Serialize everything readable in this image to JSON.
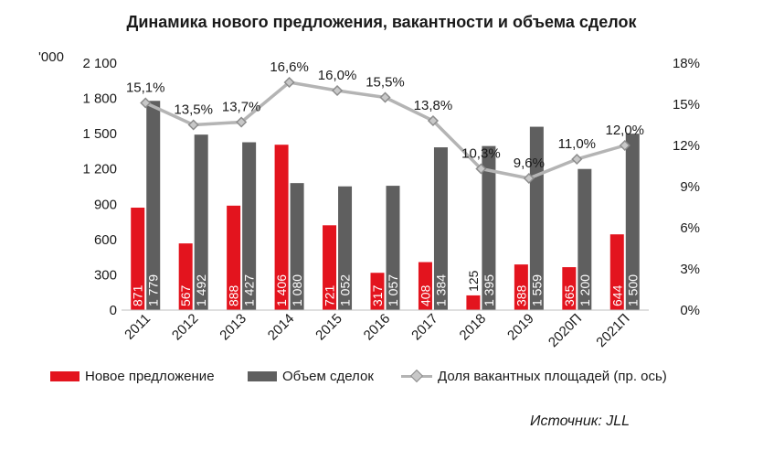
{
  "chart_data": {
    "type": "bar",
    "title": "Динамика нового предложения, вакантности и объема сделок",
    "unit_label": "'000",
    "categories": [
      "2011",
      "2012",
      "2013",
      "2014",
      "2015",
      "2016",
      "2017",
      "2018",
      "2019",
      "2020П",
      "2021П"
    ],
    "series": [
      {
        "name": "Новое предложение",
        "kind": "bar",
        "axis": "left",
        "color": "#e3141e",
        "values": [
          871,
          567,
          888,
          1406,
          721,
          317,
          408,
          125,
          388,
          365,
          644
        ],
        "labels": [
          "871",
          "567",
          "888",
          "1 406",
          "721",
          "317",
          "408",
          "125",
          "388",
          "365",
          "644"
        ]
      },
      {
        "name": "Объем сделок",
        "kind": "bar",
        "axis": "left",
        "color": "#5f5f5f",
        "values": [
          1779,
          1492,
          1427,
          1080,
          1052,
          1057,
          1384,
          1395,
          1559,
          1200,
          1500
        ],
        "labels": [
          "1 779",
          "1 492",
          "1 427",
          "1 080",
          "1 052",
          "1 057",
          "1 384",
          "1 395",
          "1 559",
          "1 200",
          "1 500"
        ]
      },
      {
        "name": "Доля вакантных площадей (пр. ось)",
        "kind": "line",
        "axis": "right",
        "color": "#b4b4b4",
        "values": [
          15.1,
          13.5,
          13.7,
          16.6,
          16.0,
          15.5,
          13.8,
          10.3,
          9.6,
          11.0,
          12.0
        ],
        "labels": [
          "15,1%",
          "13,5%",
          "13,7%",
          "16,6%",
          "16,0%",
          "15,5%",
          "13,8%",
          "10,3%",
          "9,6%",
          "11,0%",
          "12,0%"
        ]
      }
    ],
    "y_left": {
      "min": 0,
      "max": 2100,
      "ticks": [
        0,
        300,
        600,
        900,
        1200,
        1500,
        1800,
        2100
      ],
      "tick_labels": [
        "0",
        "300",
        "600",
        "900",
        "1 200",
        "1 500",
        "1 800",
        "2 100"
      ]
    },
    "y_right": {
      "min": 0,
      "max": 18,
      "ticks": [
        0,
        3,
        6,
        9,
        12,
        15,
        18
      ],
      "tick_labels": [
        "0%",
        "3%",
        "6%",
        "9%",
        "12%",
        "15%",
        "18%"
      ]
    },
    "grid": false,
    "legend_position": "bottom"
  },
  "source": "Источник: JLL"
}
